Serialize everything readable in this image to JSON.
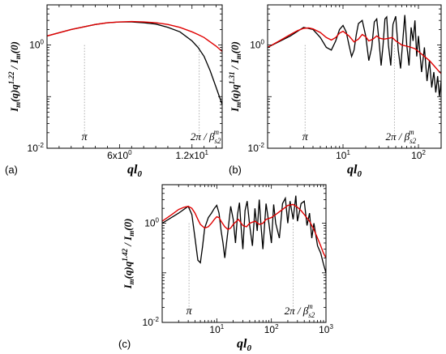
{
  "chart_data": [
    {
      "type": "line",
      "panel_label": "(a)",
      "xscale": "linear",
      "yscale": "log",
      "xlim": [
        0,
        14.5
      ],
      "ylim": [
        0.01,
        6
      ],
      "xticks": [
        {
          "value": 6,
          "base": "6x10",
          "exp": "0"
        },
        {
          "value": 12,
          "base": "1.2x10",
          "exp": "1"
        }
      ],
      "yticks": [
        {
          "value": 1,
          "base": "10",
          "exp": "0"
        },
        {
          "value": 0.01,
          "base": "10",
          "exp": "-2"
        }
      ],
      "xlabel": {
        "base": "ql",
        "sub": "0"
      },
      "ylabel": {
        "a": "I",
        "a_sub": "m",
        "b": "(q)q",
        "b_sup": "1.22",
        "c": " / I",
        "c_sub": "m",
        "d": "(0)"
      },
      "annotations": [
        {
          "text": "π",
          "x": 3.1
        },
        {
          "text": "2π / β",
          "sub": "s2",
          "sup": "m",
          "x": 12.6
        }
      ],
      "series": [
        {
          "color": "#000000",
          "x": [
            0,
            2,
            4,
            5,
            6,
            7,
            8,
            9,
            10,
            11,
            12,
            12.5,
            13,
            13.5,
            14,
            14.5
          ],
          "y": [
            1.5,
            2.0,
            2.5,
            2.7,
            2.8,
            2.8,
            2.7,
            2.55,
            2.2,
            1.8,
            1.2,
            0.9,
            0.6,
            0.32,
            0.15,
            0.07
          ]
        },
        {
          "color": "#e00000",
          "x": [
            0,
            2,
            4,
            5,
            6,
            7,
            8,
            9,
            10,
            11,
            12,
            12.5,
            13,
            13.5,
            14,
            14.5
          ],
          "y": [
            1.5,
            2.0,
            2.5,
            2.7,
            2.8,
            2.85,
            2.8,
            2.7,
            2.5,
            2.2,
            1.8,
            1.6,
            1.4,
            1.15,
            0.95,
            0.75
          ]
        }
      ]
    },
    {
      "type": "line",
      "panel_label": "(b)",
      "xscale": "log",
      "yscale": "log",
      "xlim": [
        1,
        200
      ],
      "ylim": [
        0.01,
        6
      ],
      "xticks": [
        {
          "value": 10,
          "base": "10",
          "exp": "1"
        },
        {
          "value": 100,
          "base": "10",
          "exp": "2"
        }
      ],
      "yticks": [
        {
          "value": 1,
          "base": "10",
          "exp": "0"
        },
        {
          "value": 0.01,
          "base": "10",
          "exp": "-2"
        }
      ],
      "xlabel": {
        "base": "ql",
        "sub": "0"
      },
      "ylabel": {
        "a": "I",
        "a_sub": "m",
        "b": "(q)q",
        "b_sup": "1.31",
        "c": " / I",
        "c_sub": "m",
        "d": "(0)"
      },
      "annotations": [
        {
          "text": "π",
          "x": 3.14
        },
        {
          "text": "2π / β",
          "sub": "s2",
          "sup": "m",
          "x": 48
        }
      ],
      "series": [
        {
          "color": "#000000",
          "x": [
            1,
            2,
            3,
            4,
            5,
            6,
            7,
            8,
            9,
            10,
            11,
            12,
            13,
            14,
            15,
            16,
            18,
            20,
            22,
            24,
            26,
            28,
            30,
            32,
            34,
            36,
            38,
            40,
            43,
            46,
            50,
            54,
            58,
            62,
            66,
            70,
            75,
            80,
            85,
            90,
            95,
            100,
            110,
            120,
            130,
            140,
            150,
            160,
            170,
            180,
            190,
            200
          ],
          "y": [
            0.9,
            1.5,
            2.2,
            2.0,
            1.4,
            0.9,
            0.8,
            1.2,
            2.0,
            2.4,
            1.8,
            1.0,
            0.6,
            0.8,
            1.6,
            2.6,
            3.0,
            1.5,
            0.5,
            0.9,
            2.8,
            3.2,
            1.2,
            0.4,
            1.0,
            3.2,
            3.5,
            1.0,
            0.4,
            2.5,
            3.6,
            0.8,
            0.35,
            1.2,
            3.8,
            1.0,
            0.4,
            2.2,
            1.2,
            3.0,
            0.6,
            1.5,
            0.3,
            0.9,
            0.2,
            0.5,
            0.15,
            0.3,
            0.12,
            0.25,
            0.1,
            0.2
          ]
        },
        {
          "color": "#e00000",
          "x": [
            1,
            1.5,
            2,
            2.5,
            3,
            3.5,
            4,
            5,
            6,
            7,
            8,
            9,
            10,
            12,
            14,
            16,
            18,
            20,
            22,
            25,
            28,
            31,
            35,
            40,
            45,
            50,
            55,
            60,
            70,
            80,
            90,
            100,
            120,
            140,
            160,
            180,
            200
          ],
          "y": [
            0.9,
            1.25,
            1.6,
            1.9,
            2.1,
            2.15,
            2.05,
            1.75,
            1.4,
            1.25,
            1.4,
            1.7,
            1.85,
            1.5,
            1.15,
            1.3,
            1.6,
            1.45,
            1.2,
            1.3,
            1.5,
            1.35,
            1.3,
            1.35,
            1.4,
            1.2,
            1.1,
            1.0,
            0.95,
            0.9,
            0.85,
            0.75,
            0.6,
            0.5,
            0.4,
            0.33,
            0.28
          ]
        }
      ]
    },
    {
      "type": "line",
      "panel_label": "(c)",
      "xscale": "log",
      "yscale": "log",
      "xlim": [
        1,
        1000
      ],
      "ylim": [
        0.01,
        6
      ],
      "xticks": [
        {
          "value": 10,
          "base": "10",
          "exp": "1"
        },
        {
          "value": 100,
          "base": "10",
          "exp": "2"
        },
        {
          "value": 1000,
          "base": "10",
          "exp": "3"
        }
      ],
      "yticks": [
        {
          "value": 1,
          "base": "10",
          "exp": "0"
        },
        {
          "value": 0.01,
          "base": "10",
          "exp": "-2"
        }
      ],
      "xlabel": {
        "base": "ql",
        "sub": "0"
      },
      "ylabel": {
        "a": "I",
        "a_sub": "m",
        "b": "(q)q",
        "b_sup": "1.42",
        "c": " / I",
        "c_sub": "m",
        "d": "(0)"
      },
      "annotations": [
        {
          "text": "π",
          "x": 3.1
        },
        {
          "text": "2π / β",
          "sub": "s2",
          "sup": "m",
          "x": 250
        }
      ],
      "series": [
        {
          "color": "#000000",
          "x": [
            1,
            2,
            3,
            3.5,
            4,
            4.5,
            5,
            5.5,
            6,
            7,
            8,
            9,
            10,
            11,
            12,
            13,
            14,
            16,
            18,
            20,
            22,
            24,
            26,
            28,
            30,
            33,
            36,
            40,
            45,
            50,
            55,
            60,
            65,
            70,
            80,
            90,
            100,
            110,
            120,
            140,
            160,
            180,
            200,
            220,
            250,
            280,
            300,
            350,
            400,
            450,
            500,
            550,
            600,
            700,
            800,
            900,
            1000
          ],
          "y": [
            1.0,
            1.6,
            2.2,
            1.5,
            0.5,
            0.18,
            0.16,
            0.35,
            0.8,
            1.3,
            1.6,
            2.0,
            2.3,
            1.6,
            0.7,
            0.4,
            0.2,
            0.7,
            2.2,
            1.2,
            0.4,
            1.5,
            2.6,
            0.8,
            0.3,
            1.8,
            2.8,
            0.9,
            0.35,
            2.0,
            0.7,
            3.0,
            0.8,
            0.3,
            2.5,
            1.0,
            0.4,
            2.4,
            1.0,
            0.5,
            2.5,
            3.2,
            1.0,
            2.8,
            1.2,
            3.6,
            1.1,
            2.5,
            2.8,
            0.9,
            1.6,
            0.5,
            1.0,
            0.35,
            0.25,
            0.15,
            0.1
          ]
        },
        {
          "color": "#e00000",
          "x": [
            1,
            1.5,
            2,
            2.5,
            3,
            3.5,
            4,
            4.5,
            5,
            6,
            7,
            8,
            9,
            10,
            11,
            12,
            14,
            16,
            18,
            20,
            25,
            30,
            35,
            40,
            50,
            60,
            70,
            80,
            100,
            120,
            150,
            180,
            200,
            250,
            300,
            350,
            400,
            500,
            600,
            700,
            800,
            900,
            1000
          ],
          "y": [
            1.1,
            1.5,
            1.9,
            2.1,
            2.2,
            2.0,
            1.6,
            1.2,
            0.95,
            0.8,
            0.85,
            1.0,
            1.2,
            1.35,
            1.3,
            1.1,
            0.85,
            0.75,
            0.8,
            0.95,
            1.2,
            0.9,
            0.85,
            1.0,
            1.1,
            0.95,
            1.0,
            1.2,
            1.3,
            1.5,
            1.8,
            2.1,
            2.3,
            2.4,
            2.1,
            1.8,
            1.5,
            1.1,
            0.75,
            0.5,
            0.35,
            0.25,
            0.2
          ]
        }
      ]
    }
  ]
}
